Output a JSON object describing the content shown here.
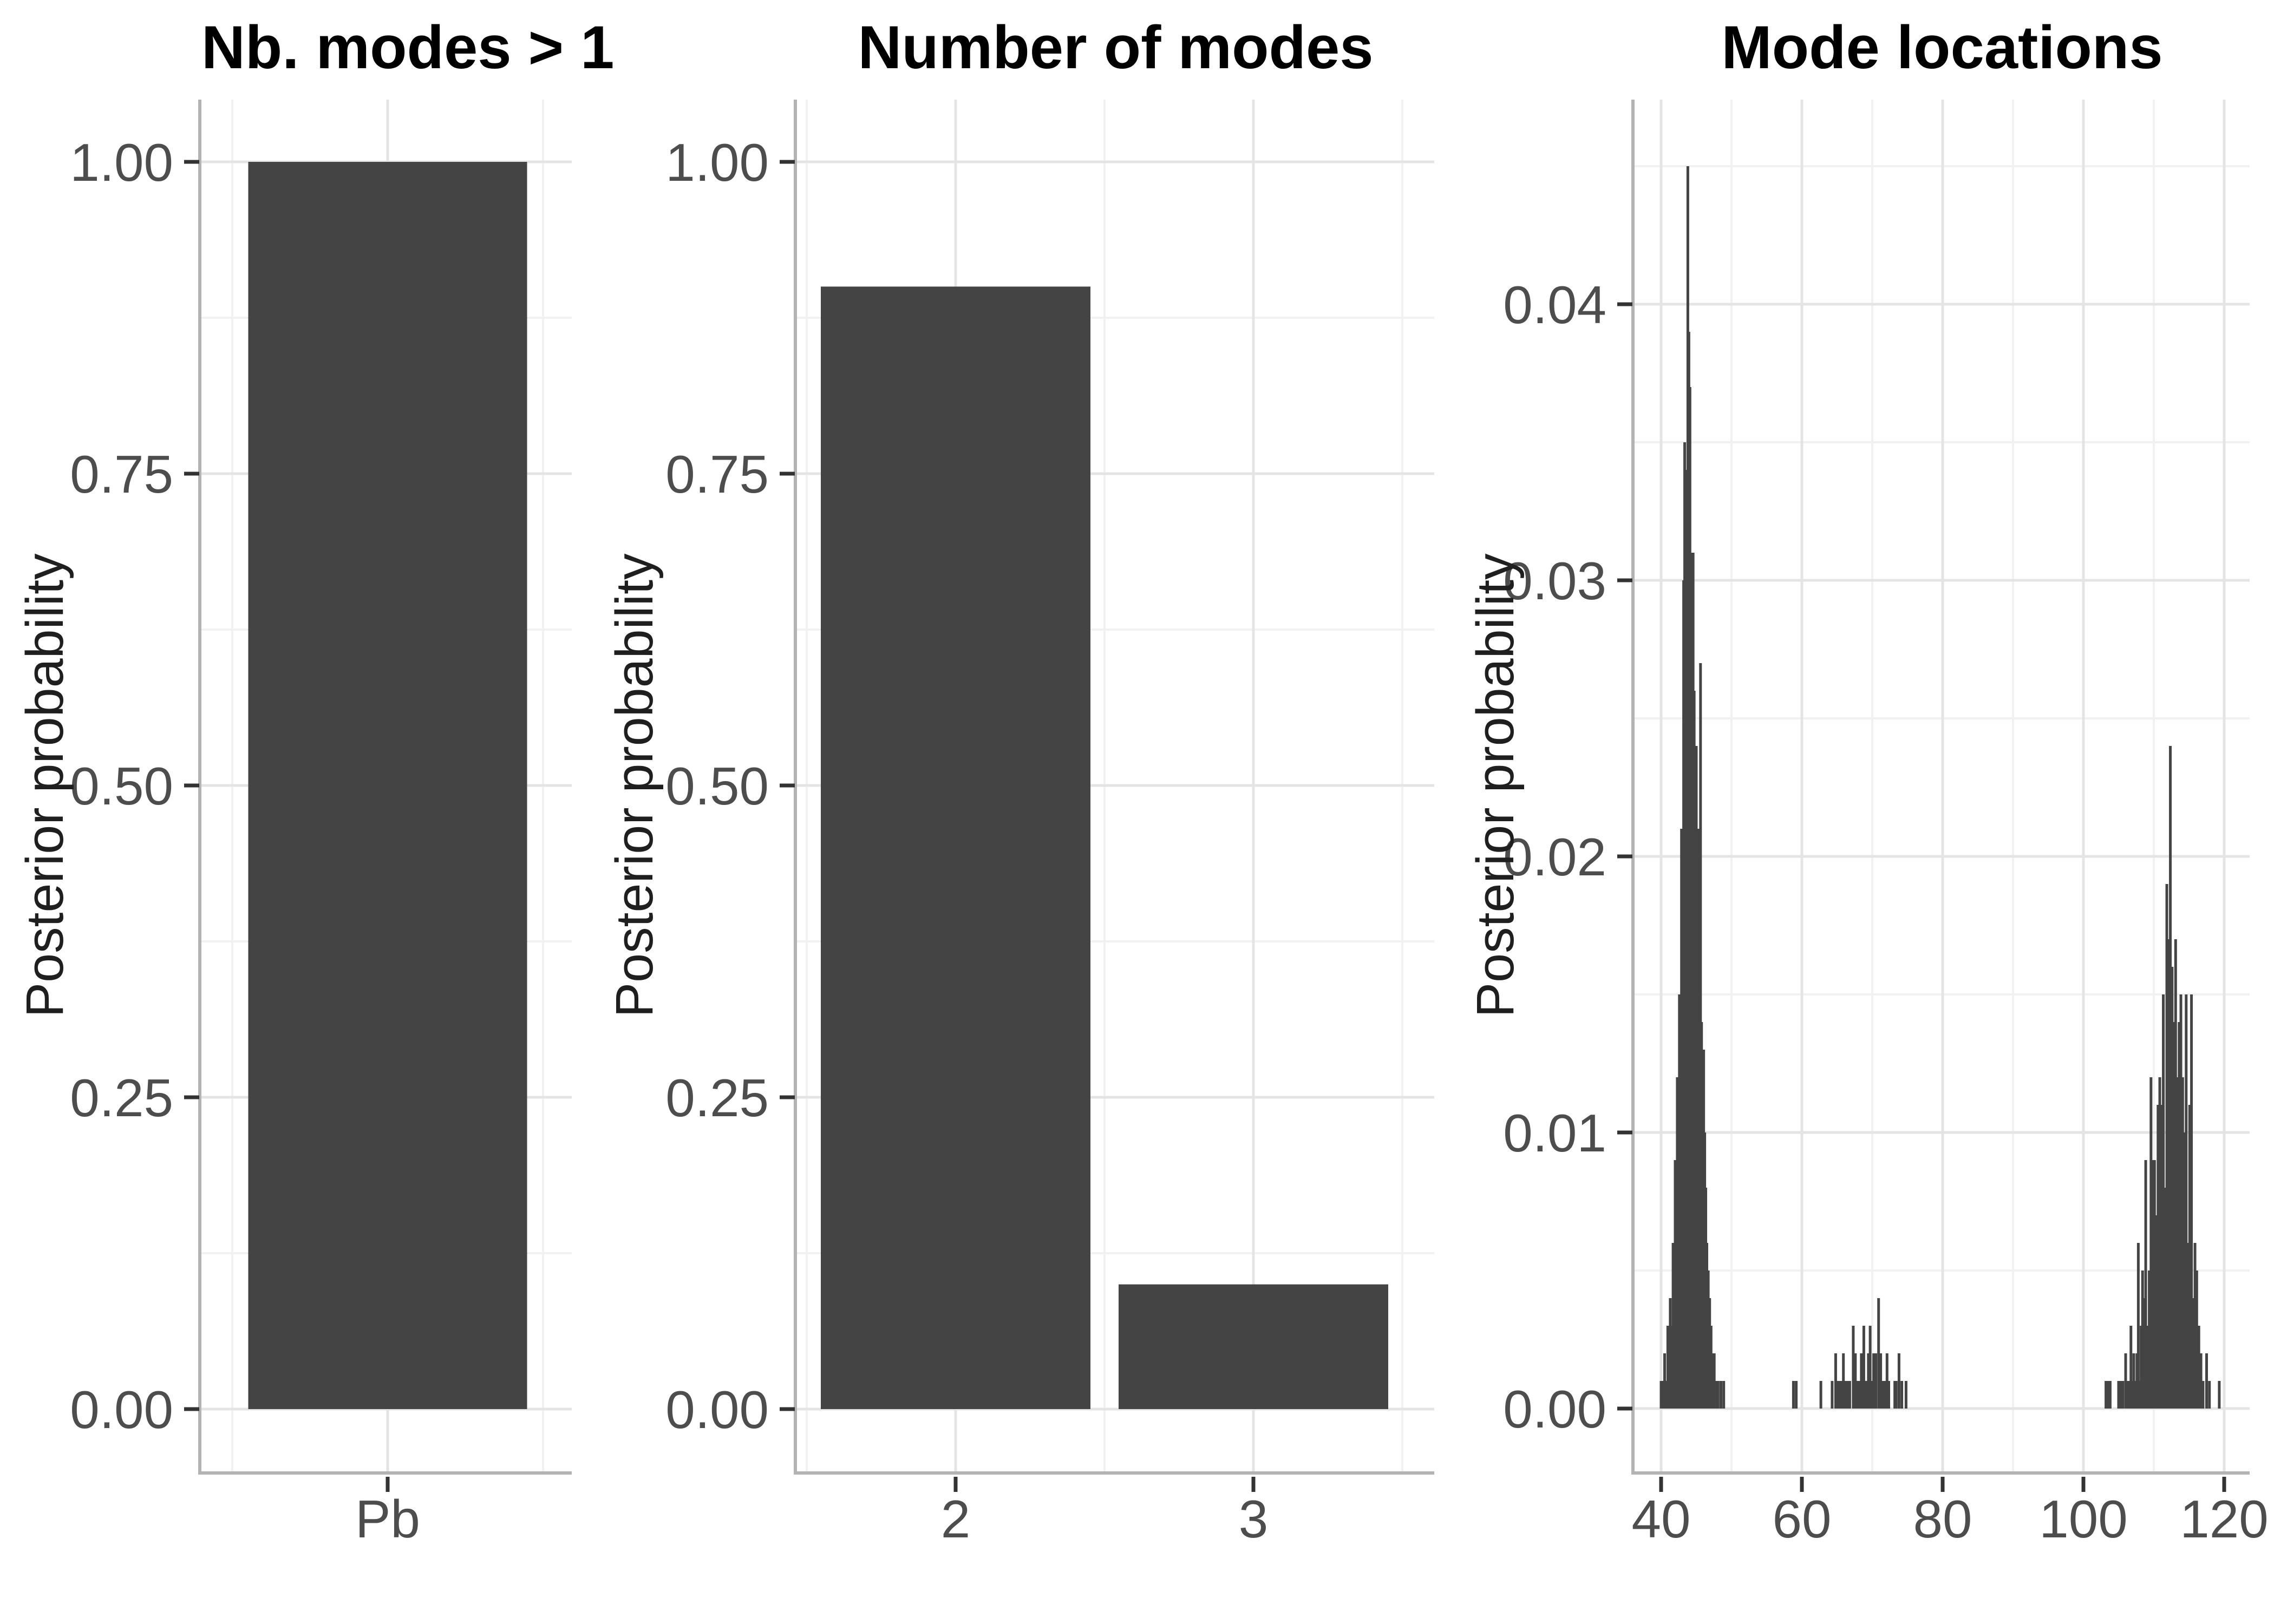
{
  "figure": {
    "background": "#ffffff"
  },
  "colors": {
    "bar_fill": "#444444",
    "grid_major": "#e4e4e4",
    "grid_minor": "#f1f1f1",
    "axis_line": "#b3b3b3",
    "tick_mark": "#333333",
    "tick_label": "#4d4d4d",
    "axis_title": "#1f1f1f",
    "plot_title": "#000000"
  },
  "charts": [
    {
      "id": "nb-modes-gt-1",
      "title": "Nb. modes > 1",
      "ylabel": "Posterior probability",
      "chart_data": {
        "type": "bar",
        "categories": [
          "Pb"
        ],
        "values": [
          1.0
        ],
        "ylim": [
          0,
          1.05
        ],
        "yticks": [
          0,
          0.25,
          0.5,
          0.75,
          1.0
        ],
        "ytick_labels": [
          "0.00",
          "0.25",
          "0.50",
          "0.75",
          "1.00"
        ],
        "grid": "major+minor",
        "legend": "none"
      }
    },
    {
      "id": "number-of-modes",
      "title": "Number of modes",
      "ylabel": "Posterior probability",
      "chart_data": {
        "type": "bar",
        "categories": [
          "2",
          "3"
        ],
        "values": [
          0.9,
          0.1
        ],
        "ylim": [
          0,
          1.05
        ],
        "yticks": [
          0,
          0.25,
          0.5,
          0.75,
          1.0
        ],
        "ytick_labels": [
          "0.00",
          "0.25",
          "0.50",
          "0.75",
          "1.00"
        ],
        "grid": "major+minor",
        "legend": "none"
      }
    },
    {
      "id": "mode-locations",
      "title": "Mode locations",
      "ylabel": "Posterior probability",
      "chart_data": {
        "type": "bar",
        "xlim": [
          36.2,
          123.6
        ],
        "ylim": [
          0,
          0.047
        ],
        "x_tick_values": [
          40,
          60,
          80,
          100,
          120
        ],
        "x_tick_labels": [
          "40",
          "60",
          "80",
          "100",
          "120"
        ],
        "x_minor": [
          50,
          70,
          90,
          110
        ],
        "yticks": [
          0,
          0.01,
          0.02,
          0.03,
          0.04
        ],
        "ytick_labels": [
          "0.00",
          "0.01",
          "0.02",
          "0.03",
          "0.04"
        ],
        "bar_width": 0.3,
        "grid": "major+minor",
        "legend": "none",
        "bars": [
          [
            40.0,
            0.001
          ],
          [
            40.2,
            0.001
          ],
          [
            40.5,
            0.002
          ],
          [
            40.75,
            0.001
          ],
          [
            40.95,
            0.003
          ],
          [
            41.1,
            0.002
          ],
          [
            41.3,
            0.004
          ],
          [
            41.5,
            0.003
          ],
          [
            41.7,
            0.006
          ],
          [
            41.85,
            0.005
          ],
          [
            42.0,
            0.009
          ],
          [
            42.15,
            0.007
          ],
          [
            42.3,
            0.012
          ],
          [
            42.45,
            0.01
          ],
          [
            42.6,
            0.015
          ],
          [
            42.75,
            0.013
          ],
          [
            42.9,
            0.021
          ],
          [
            43.05,
            0.017
          ],
          [
            43.2,
            0.03
          ],
          [
            43.35,
            0.035
          ],
          [
            43.5,
            0.034
          ],
          [
            43.65,
            0.03
          ],
          [
            43.8,
            0.045
          ],
          [
            43.95,
            0.039
          ],
          [
            44.1,
            0.037
          ],
          [
            44.25,
            0.031
          ],
          [
            44.4,
            0.028
          ],
          [
            44.55,
            0.031
          ],
          [
            44.7,
            0.026
          ],
          [
            44.85,
            0.022
          ],
          [
            45.0,
            0.024
          ],
          [
            45.15,
            0.019
          ],
          [
            45.3,
            0.021
          ],
          [
            45.45,
            0.016
          ],
          [
            45.6,
            0.027
          ],
          [
            45.75,
            0.014
          ],
          [
            45.9,
            0.012
          ],
          [
            46.05,
            0.013
          ],
          [
            46.2,
            0.01
          ],
          [
            46.35,
            0.008
          ],
          [
            46.5,
            0.006
          ],
          [
            46.7,
            0.005
          ],
          [
            46.9,
            0.004
          ],
          [
            47.1,
            0.003
          ],
          [
            47.3,
            0.002
          ],
          [
            47.55,
            0.002
          ],
          [
            47.8,
            0.001
          ],
          [
            48.1,
            0.001
          ],
          [
            48.5,
            0.001
          ],
          [
            48.9,
            0.001
          ],
          [
            58.8,
            0.001
          ],
          [
            59.2,
            0.001
          ],
          [
            62.7,
            0.001
          ],
          [
            64.3,
            0.001
          ],
          [
            64.8,
            0.002
          ],
          [
            65.0,
            0.001
          ],
          [
            65.35,
            0.001
          ],
          [
            65.55,
            0.001
          ],
          [
            65.9,
            0.002
          ],
          [
            66.1,
            0.001
          ],
          [
            66.3,
            0.001
          ],
          [
            66.6,
            0.001
          ],
          [
            66.8,
            0.001
          ],
          [
            67.3,
            0.003
          ],
          [
            67.6,
            0.002
          ],
          [
            67.8,
            0.001
          ],
          [
            68.0,
            0.001
          ],
          [
            68.2,
            0.001
          ],
          [
            68.45,
            0.002
          ],
          [
            68.8,
            0.003
          ],
          [
            69.0,
            0.001
          ],
          [
            69.2,
            0.001
          ],
          [
            69.45,
            0.002
          ],
          [
            69.7,
            0.003
          ],
          [
            69.9,
            0.001
          ],
          [
            70.2,
            0.002
          ],
          [
            70.5,
            0.002
          ],
          [
            70.9,
            0.004
          ],
          [
            71.2,
            0.002
          ],
          [
            71.4,
            0.001
          ],
          [
            71.6,
            0.001
          ],
          [
            71.9,
            0.001
          ],
          [
            72.1,
            0.002
          ],
          [
            72.35,
            0.001
          ],
          [
            73.2,
            0.001
          ],
          [
            73.4,
            0.001
          ],
          [
            73.8,
            0.002
          ],
          [
            74.2,
            0.001
          ],
          [
            74.8,
            0.001
          ],
          [
            103.2,
            0.001
          ],
          [
            103.5,
            0.001
          ],
          [
            103.8,
            0.001
          ],
          [
            105.0,
            0.001
          ],
          [
            105.3,
            0.001
          ],
          [
            105.6,
            0.001
          ],
          [
            106.0,
            0.002
          ],
          [
            106.35,
            0.001
          ],
          [
            106.55,
            0.001
          ],
          [
            106.75,
            0.003
          ],
          [
            107.0,
            0.001
          ],
          [
            107.15,
            0.002
          ],
          [
            107.4,
            0.001
          ],
          [
            107.6,
            0.002
          ],
          [
            107.8,
            0.006
          ],
          [
            108.0,
            0.001
          ],
          [
            108.2,
            0.003
          ],
          [
            108.4,
            0.005
          ],
          [
            108.6,
            0.004
          ],
          [
            108.85,
            0.009
          ],
          [
            109.1,
            0.003
          ],
          [
            109.35,
            0.005
          ],
          [
            109.6,
            0.012
          ],
          [
            109.85,
            0.009
          ],
          [
            110.1,
            0.009
          ],
          [
            110.35,
            0.007
          ],
          [
            110.6,
            0.011
          ],
          [
            110.85,
            0.012
          ],
          [
            111.1,
            0.011
          ],
          [
            111.35,
            0.015
          ],
          [
            111.6,
            0.008
          ],
          [
            111.85,
            0.019
          ],
          [
            112.1,
            0.017
          ],
          [
            112.35,
            0.024
          ],
          [
            112.6,
            0.016
          ],
          [
            112.85,
            0.014
          ],
          [
            113.1,
            0.017
          ],
          [
            113.35,
            0.012
          ],
          [
            113.6,
            0.014
          ],
          [
            113.85,
            0.015
          ],
          [
            114.1,
            0.012
          ],
          [
            114.35,
            0.01
          ],
          [
            114.6,
            0.015
          ],
          [
            114.85,
            0.006
          ],
          [
            115.1,
            0.011
          ],
          [
            115.35,
            0.015
          ],
          [
            115.6,
            0.004
          ],
          [
            115.85,
            0.006
          ],
          [
            116.1,
            0.005
          ],
          [
            116.4,
            0.003
          ],
          [
            116.7,
            0.002
          ],
          [
            117.0,
            0.001
          ],
          [
            117.5,
            0.002
          ],
          [
            117.9,
            0.001
          ],
          [
            119.3,
            0.001
          ]
        ]
      }
    }
  ]
}
